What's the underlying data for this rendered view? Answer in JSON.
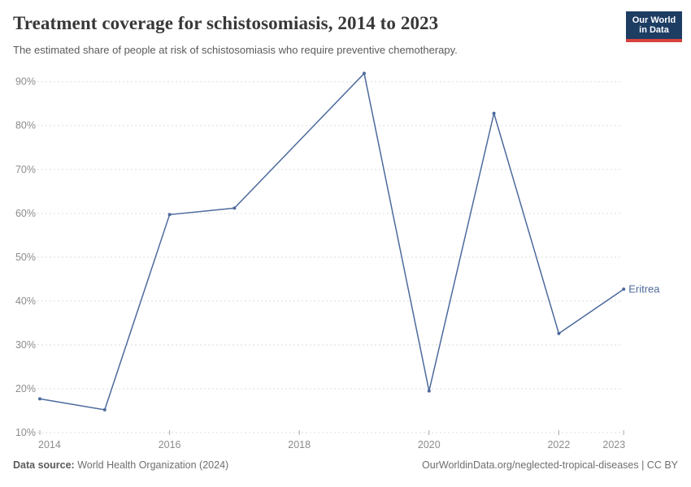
{
  "header": {
    "title": "Treatment coverage for schistosomiasis, 2014 to 2023",
    "subtitle": "The estimated share of people at risk of schistosomiasis who require preventive chemotherapy."
  },
  "logo": {
    "line1": "Our World",
    "line2": "in Data",
    "bg_color": "#1d3d63",
    "accent_color": "#d8423c"
  },
  "chart_data": {
    "type": "line",
    "title": "Treatment coverage for schistosomiasis, 2014 to 2023",
    "xlabel": "",
    "ylabel": "",
    "series": [
      {
        "name": "Eritrea",
        "color": "#4c6a9c",
        "x": [
          2014,
          2015,
          2016,
          2017,
          2019,
          2020,
          2021,
          2022,
          2023
        ],
        "values": [
          17.7,
          15.2,
          59.7,
          61.2,
          91.9,
          19.5,
          82.8,
          32.6,
          42.7
        ]
      }
    ],
    "x_ticks": [
      2014,
      2016,
      2018,
      2020,
      2022,
      2023
    ],
    "y_ticks": [
      10,
      20,
      30,
      40,
      50,
      60,
      70,
      80,
      90
    ],
    "y_tick_suffix": "%",
    "xlim": [
      2014,
      2023
    ],
    "ylim": [
      10,
      93
    ],
    "grid": "horizontal-dashed",
    "legend_position": "end-of-line-label",
    "grid_color": "#dedede",
    "axis_label_color": "#8c8c8c",
    "tick_color": "#aaaaaa"
  },
  "footer": {
    "source_label": "Data source:",
    "source_value": " World Health Organization (2024)",
    "right_text": "OurWorldinData.org/neglected-tropical-diseases | CC BY"
  }
}
